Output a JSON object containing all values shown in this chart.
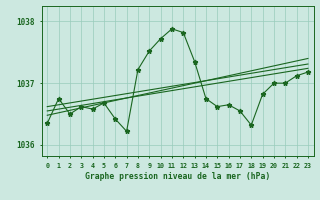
{
  "title": "Graphe pression niveau de la mer (hPa)",
  "x_labels": [
    "0",
    "1",
    "2",
    "3",
    "4",
    "5",
    "6",
    "7",
    "8",
    "9",
    "10",
    "11",
    "12",
    "13",
    "14",
    "15",
    "16",
    "17",
    "18",
    "19",
    "20",
    "21",
    "22",
    "23"
  ],
  "x_values": [
    0,
    1,
    2,
    3,
    4,
    5,
    6,
    7,
    8,
    9,
    10,
    11,
    12,
    13,
    14,
    15,
    16,
    17,
    18,
    19,
    20,
    21,
    22,
    23
  ],
  "main_line": [
    1036.35,
    1036.75,
    1036.5,
    1036.62,
    1036.58,
    1036.68,
    1036.42,
    1036.22,
    1037.22,
    1037.52,
    1037.72,
    1037.88,
    1037.82,
    1037.35,
    1036.75,
    1036.62,
    1036.65,
    1036.55,
    1036.32,
    1036.82,
    1037.0,
    1037.0,
    1037.12,
    1037.18
  ],
  "trend_line1": [
    1036.55,
    1036.58,
    1036.61,
    1036.64,
    1036.67,
    1036.7,
    1036.73,
    1036.76,
    1036.79,
    1036.82,
    1036.85,
    1036.88,
    1036.91,
    1036.94,
    1036.97,
    1037.0,
    1037.03,
    1037.06,
    1037.09,
    1037.12,
    1037.15,
    1037.18,
    1037.21,
    1037.24
  ],
  "trend_line2": [
    1036.48,
    1036.52,
    1036.56,
    1036.6,
    1036.64,
    1036.68,
    1036.72,
    1036.76,
    1036.8,
    1036.84,
    1036.88,
    1036.92,
    1036.96,
    1037.0,
    1037.04,
    1037.08,
    1037.12,
    1037.16,
    1037.2,
    1037.24,
    1037.28,
    1037.32,
    1037.36,
    1037.4
  ],
  "trend_line3": [
    1036.62,
    1036.65,
    1036.68,
    1036.71,
    1036.74,
    1036.77,
    1036.8,
    1036.83,
    1036.86,
    1036.89,
    1036.92,
    1036.95,
    1036.98,
    1037.01,
    1037.04,
    1037.07,
    1037.1,
    1037.13,
    1037.16,
    1037.19,
    1037.22,
    1037.25,
    1037.28,
    1037.31
  ],
  "ylim": [
    1035.82,
    1038.25
  ],
  "yticks": [
    1036,
    1037,
    1038
  ],
  "bg_color": "#cce8e0",
  "grid_color": "#99ccbb",
  "line_color": "#1a6620",
  "marker": "*",
  "marker_size": 3.5
}
